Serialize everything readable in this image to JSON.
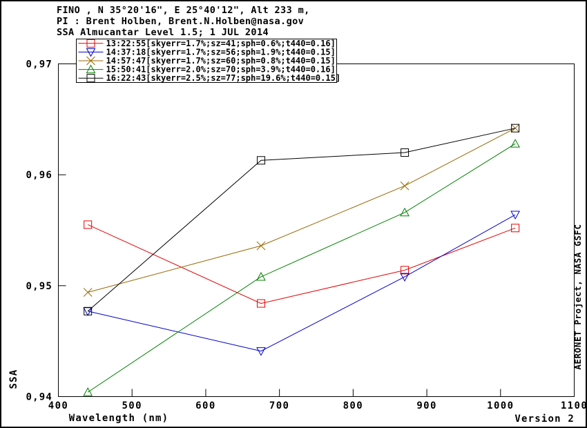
{
  "header": {
    "line1": "FINO , N 35°20'16\", E 25°40'12\", Alt 233 m,",
    "line2": "PI : Brent Holben, Brent.N.Holben@nasa.gov",
    "line3": "SSA Almucantar Level 1.5; 1 JUL 2014"
  },
  "axes": {
    "x_label": "Wavelength (nm)",
    "y_label": "SSA"
  },
  "footer": {
    "version": "Version 2",
    "credit": "AERONET Project, NASA GSFC"
  },
  "chart_data": {
    "type": "line",
    "xlabel": "Wavelength (nm)",
    "ylabel": "SSA",
    "xlim": [
      400,
      1100
    ],
    "ylim": [
      0.94,
      0.97
    ],
    "x": [
      440,
      675,
      870,
      1020
    ],
    "x_ticks": [
      400,
      500,
      600,
      700,
      800,
      900,
      1000,
      1100
    ],
    "y_ticks": [
      {
        "value": 0.94,
        "label": "0,94"
      },
      {
        "value": 0.95,
        "label": "0,95"
      },
      {
        "value": 0.96,
        "label": "0,96"
      },
      {
        "value": 0.97,
        "label": "0,97"
      }
    ],
    "grid": false,
    "legend_position": "top-left",
    "series": [
      {
        "name": "13:22:55[skyerr=1.7%;sz=41;sph=0.6%;t440=0.16]",
        "color": "#e60000",
        "marker": "square",
        "values": [
          0.9555,
          0.9484,
          0.9514,
          0.9552
        ]
      },
      {
        "name": "14:37:18[skyerr=1.7%;sz=56;sph=1.9%;t440=0.15]",
        "color": "#0000cc",
        "marker": "triangle-down",
        "values": [
          0.9477,
          0.9441,
          0.9508,
          0.9564
        ]
      },
      {
        "name": "14:57:47[skyerr=1.7%;sz=60;sph=0.8%;t440=0.15]",
        "color": "#996600",
        "marker": "x",
        "values": [
          0.9494,
          0.9536,
          0.959,
          0.9642
        ]
      },
      {
        "name": "15:50:41[skyerr=2.0%;sz=70;sph=3.9%;t440=0.16]",
        "color": "#008000",
        "marker": "triangle-up",
        "values": [
          0.9404,
          0.9508,
          0.9566,
          0.9628
        ]
      },
      {
        "name": "16:22:43[skyerr=2.5%;sz=77;sph=19.6%;t440=0.15]",
        "color": "#000000",
        "marker": "square",
        "values": [
          0.9477,
          0.9613,
          0.962,
          0.9642
        ]
      }
    ]
  }
}
